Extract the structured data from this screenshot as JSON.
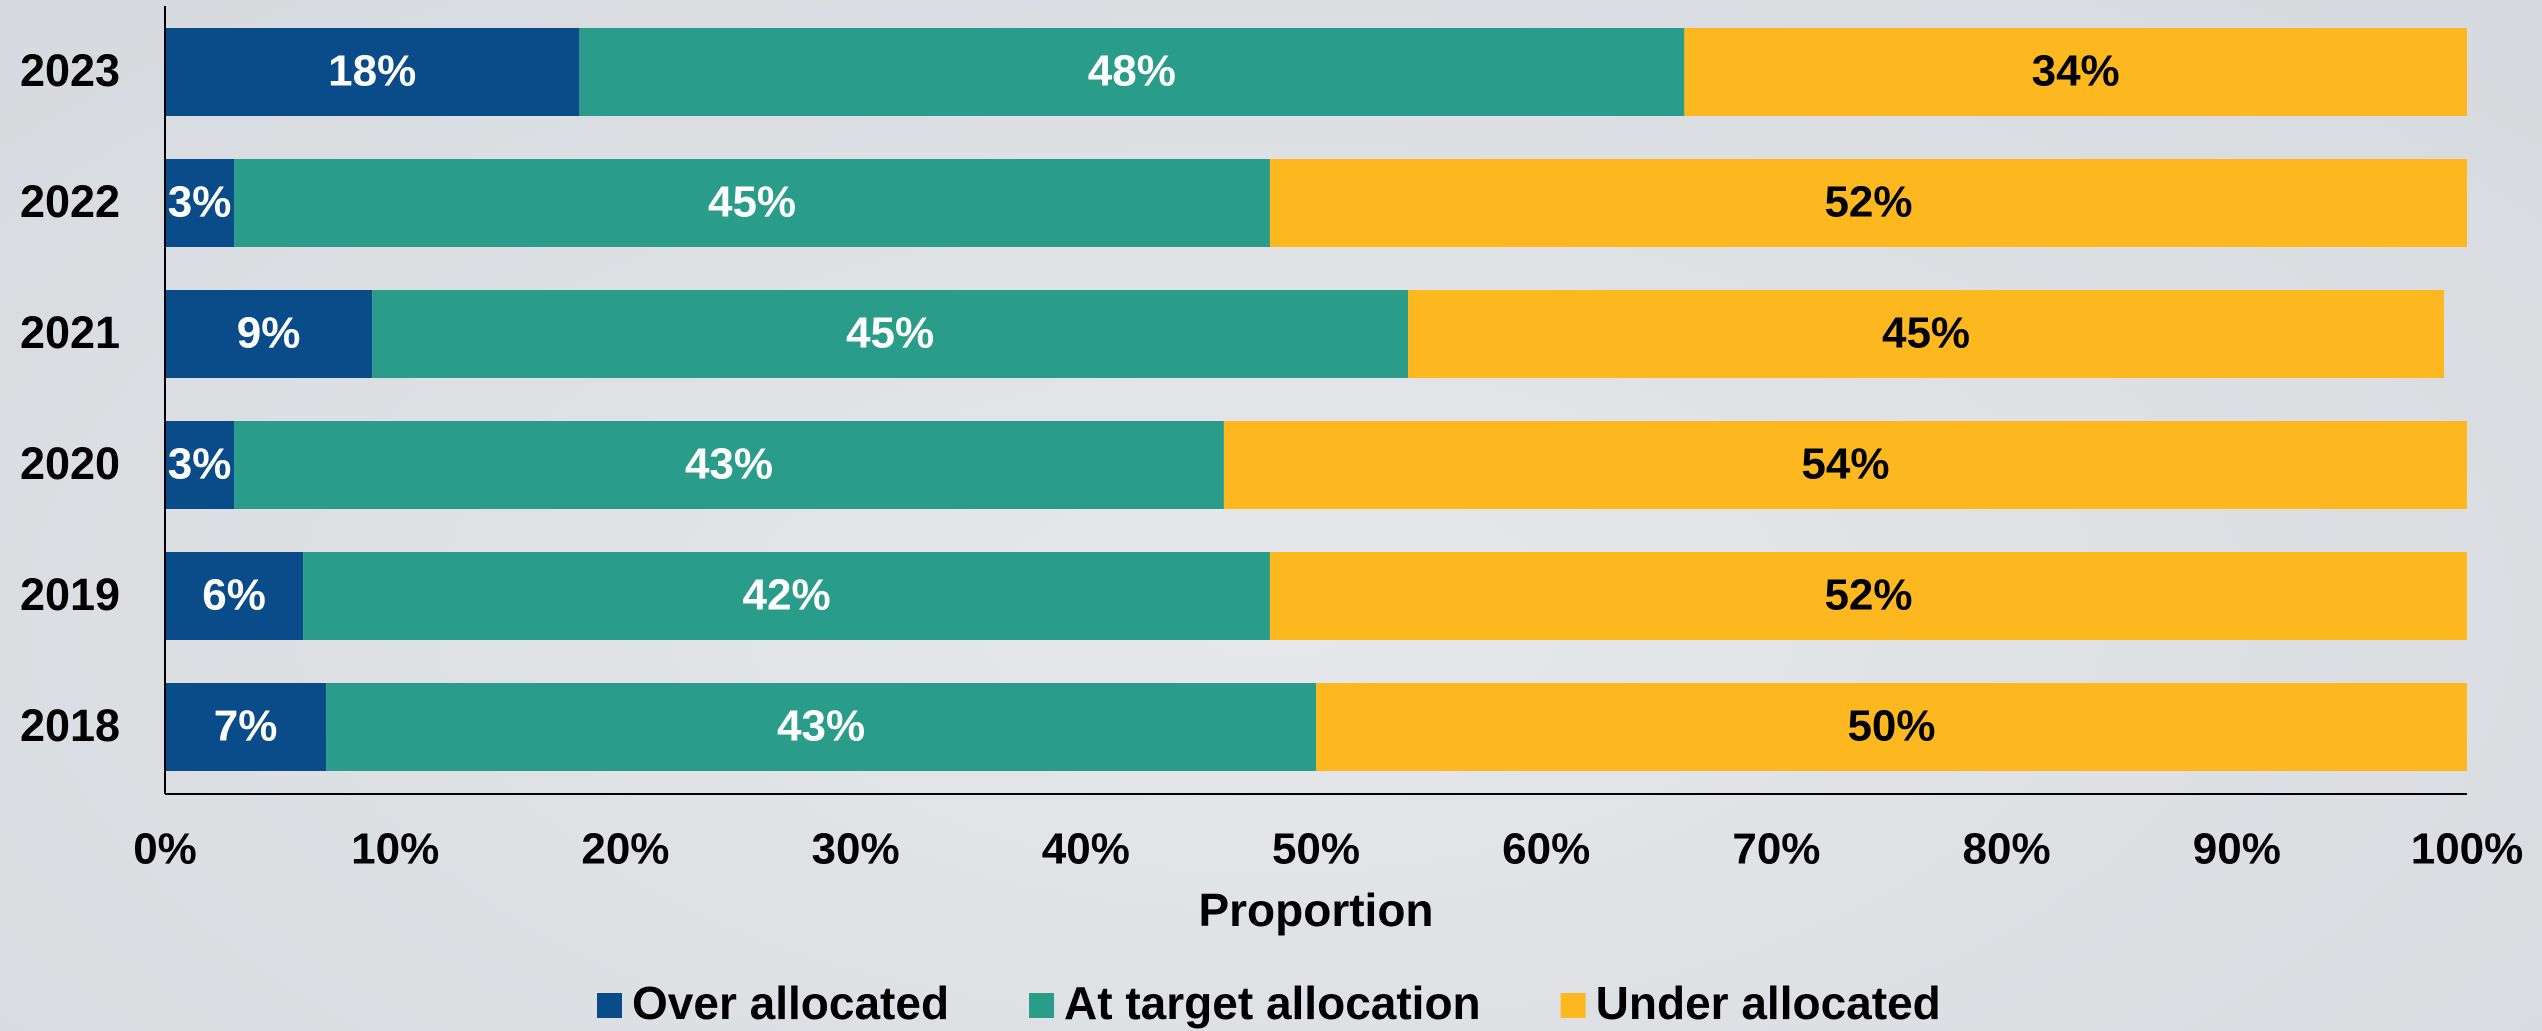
{
  "chart_data": {
    "type": "stacked-bar-horizontal",
    "categories": [
      "2023",
      "2022",
      "2021",
      "2020",
      "2019",
      "2018"
    ],
    "series": [
      {
        "name": "Over allocated",
        "color": "#0a4c8a",
        "label_color": "#ffffff",
        "values": [
          18,
          3,
          9,
          3,
          6,
          7
        ],
        "value_labels": [
          "18%",
          "3%",
          "9%",
          "3%",
          "6%",
          "7%"
        ]
      },
      {
        "name": "At target allocation",
        "color": "#2a9c8a",
        "label_color": "#ffffff",
        "values": [
          48,
          45,
          45,
          43,
          42,
          43
        ],
        "value_labels": [
          "48%",
          "45%",
          "45%",
          "43%",
          "42%",
          "43%"
        ]
      },
      {
        "name": "Under allocated",
        "color": "#fdb820",
        "label_color": "#000000",
        "values": [
          34,
          52,
          45,
          54,
          52,
          50
        ],
        "value_labels": [
          "34%",
          "52%",
          "45%",
          "54%",
          "52%",
          "50%"
        ]
      }
    ],
    "x_label": "Proportion",
    "xlim": [
      0,
      100
    ],
    "xticks": [
      {
        "value": 0,
        "label": "0%"
      },
      {
        "value": 10,
        "label": "10%"
      },
      {
        "value": 20,
        "label": "20%"
      },
      {
        "value": 30,
        "label": "30%"
      },
      {
        "value": 40,
        "label": "40%"
      },
      {
        "value": 50,
        "label": "50%"
      },
      {
        "value": 60,
        "label": "60%"
      },
      {
        "value": 70,
        "label": "70%"
      },
      {
        "value": 80,
        "label": "80%"
      },
      {
        "value": 90,
        "label": "90%"
      },
      {
        "value": 100,
        "label": "100%"
      }
    ],
    "legend": "bottom"
  }
}
